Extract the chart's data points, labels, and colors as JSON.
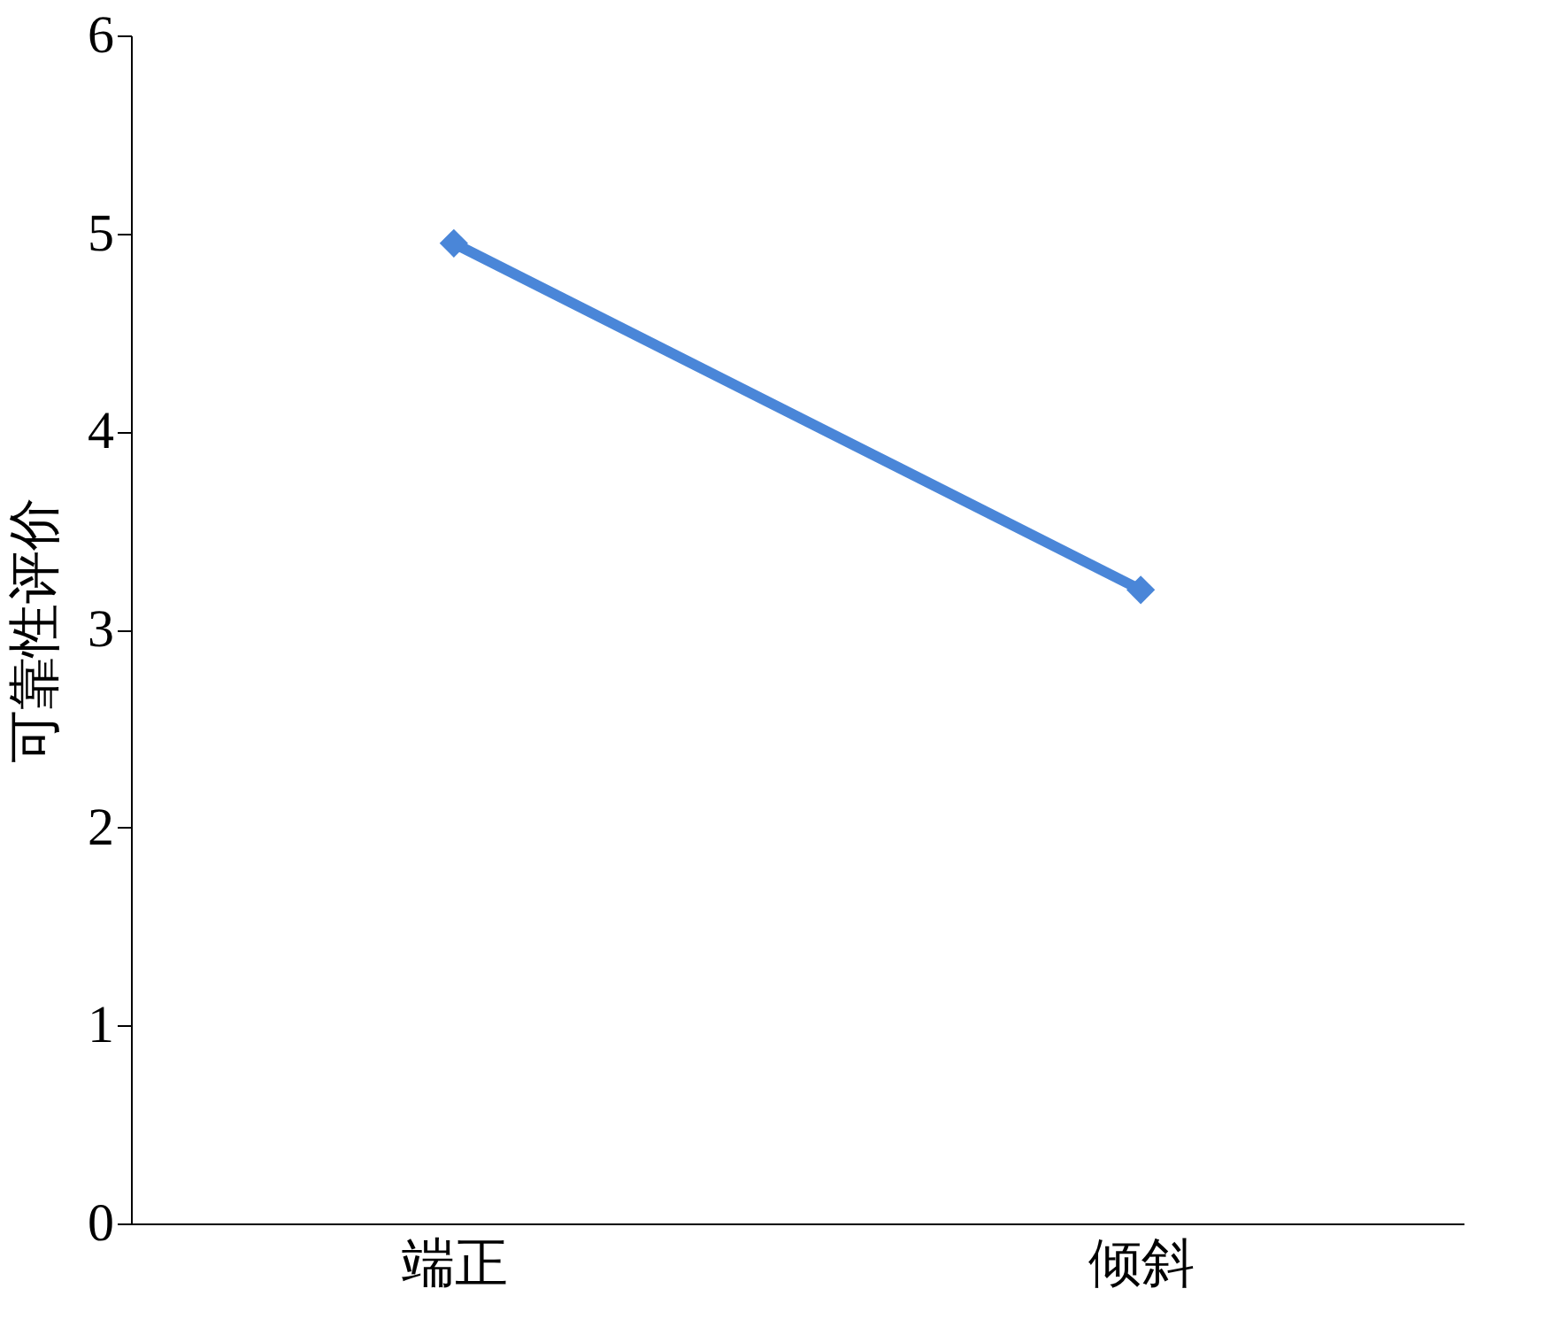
{
  "chart_data": {
    "type": "line",
    "ylabel": "可靠性评价",
    "categories": [
      "端正",
      "倾斜"
    ],
    "series": [
      {
        "color": "#4a86d8",
        "values": [
          4.95,
          3.2
        ]
      }
    ],
    "ylim": [
      0,
      6
    ],
    "yticks": [
      0,
      1,
      2,
      3,
      4,
      5,
      6
    ],
    "marker": "diamond",
    "line_style": "solid"
  }
}
